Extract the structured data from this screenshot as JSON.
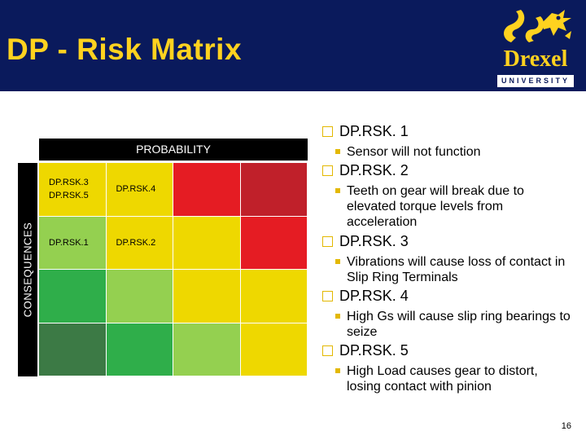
{
  "header": {
    "title": "DP - Risk Matrix",
    "background_color": "#0a1a5c",
    "title_color": "#ffd21f",
    "logo": {
      "name": "Drexel",
      "subtitle": "UNIVERSITY",
      "icon": "dragon-icon"
    }
  },
  "matrix": {
    "probability_label": "PROBABILITY",
    "consequences_label": "CONSEQUENCES",
    "rows": [
      [
        {
          "color": "#eed800",
          "text": [
            "DP.RSK.3",
            "DP.RSK.5"
          ]
        },
        {
          "color": "#eed800",
          "text": [
            "DP.RSK.4"
          ]
        },
        {
          "color": "#e51c23",
          "text": []
        },
        {
          "color": "#c0202a",
          "text": []
        }
      ],
      [
        {
          "color": "#94d050",
          "text": [
            "DP.RSK.1"
          ]
        },
        {
          "color": "#eed800",
          "text": [
            "DP.RSK.2"
          ]
        },
        {
          "color": "#eed800",
          "text": []
        },
        {
          "color": "#e51c23",
          "text": []
        }
      ],
      [
        {
          "color": "#2fae4a",
          "text": []
        },
        {
          "color": "#94d050",
          "text": []
        },
        {
          "color": "#eed800",
          "text": []
        },
        {
          "color": "#eed800",
          "text": []
        }
      ],
      [
        {
          "color": "#3c7a45",
          "text": []
        },
        {
          "color": "#2fae4a",
          "text": []
        },
        {
          "color": "#94d050",
          "text": []
        },
        {
          "color": "#eed800",
          "text": []
        }
      ]
    ]
  },
  "risks": [
    {
      "id": "DP.RSK. 1",
      "desc": "Sensor will not function"
    },
    {
      "id": "DP.RSK. 2",
      "desc": "Teeth on gear will break due to elevated torque levels from acceleration"
    },
    {
      "id": "DP.RSK. 3",
      "desc": "Vibrations will cause loss of contact in Slip Ring Terminals"
    },
    {
      "id": "DP.RSK. 4",
      "desc": "High Gs will cause slip ring bearings to seize"
    },
    {
      "id": "DP.RSK. 5",
      "desc": "High Load causes gear to distort, losing contact with pinion"
    }
  ],
  "page_number": "16"
}
